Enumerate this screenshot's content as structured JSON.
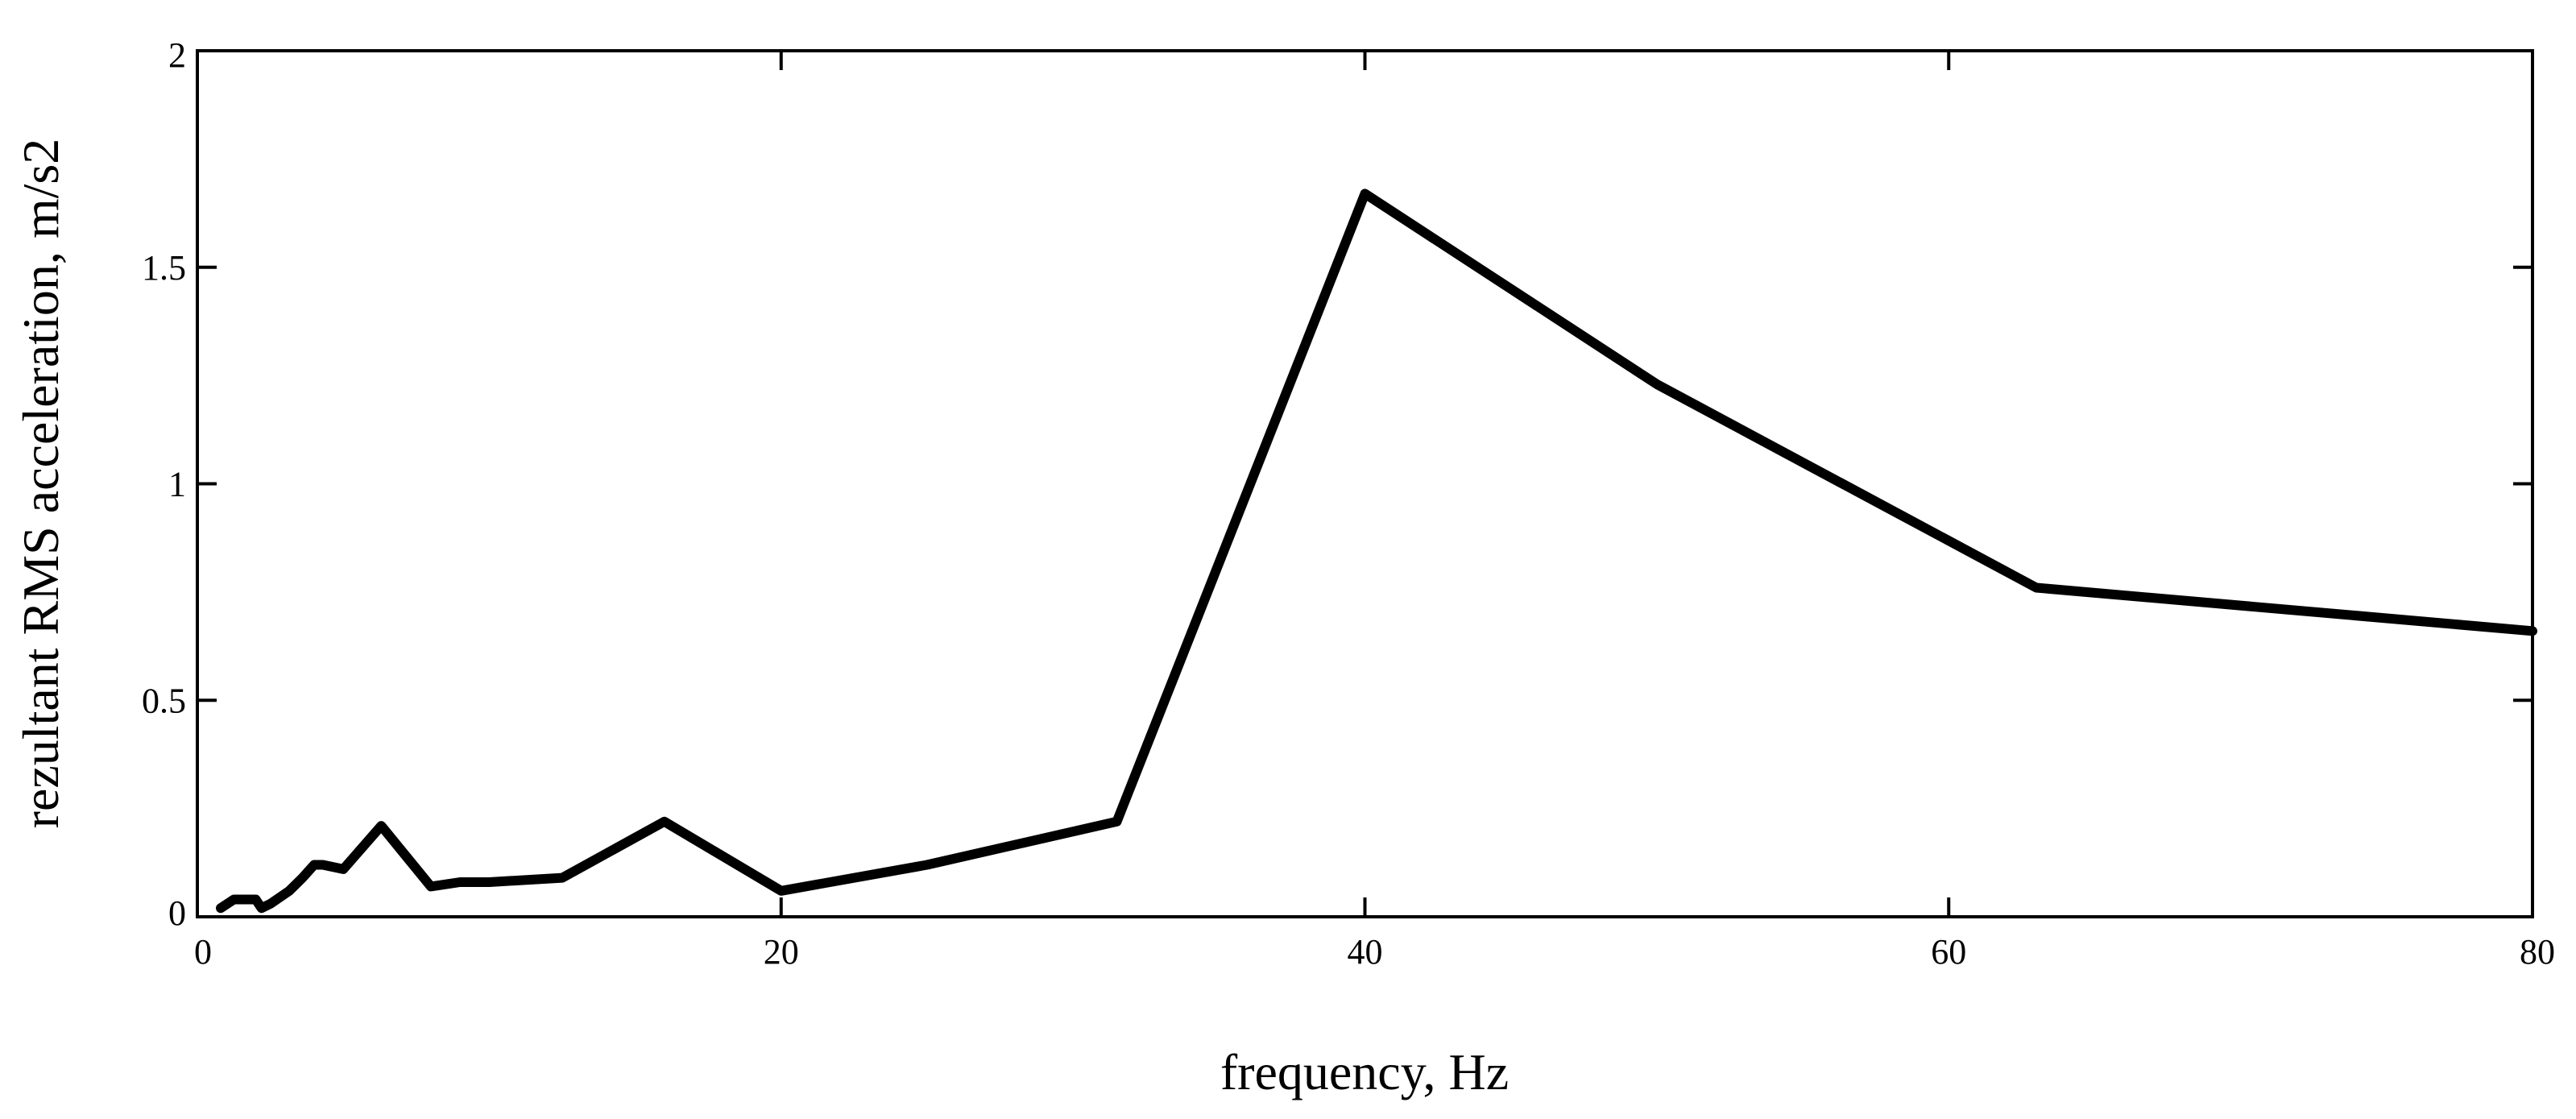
{
  "chart_data": {
    "type": "line",
    "title": "",
    "xlabel": "frequency, Hz",
    "ylabel": "rezultant RMS acceleration, m/s2",
    "xlim": [
      0,
      80
    ],
    "ylim": [
      0,
      2
    ],
    "xticks": [
      0,
      20,
      40,
      60,
      80
    ],
    "yticks": [
      0,
      0.5,
      1,
      1.5,
      2
    ],
    "xtick_labels": [
      "0",
      "20",
      "40",
      "60",
      "80"
    ],
    "ytick_labels": [
      "0",
      "0.5",
      "1",
      "1.5",
      "2"
    ],
    "grid": false,
    "line_color": "#000000",
    "series": [
      {
        "x": [
          0.8,
          1.25,
          2,
          2.2,
          2.5,
          3.15,
          3.6,
          4,
          4.3,
          5,
          6.3,
          8,
          9,
          10,
          12.5,
          16,
          20,
          25,
          31.5,
          40,
          50,
          63,
          80
        ],
        "y": [
          0.02,
          0.04,
          0.04,
          0.02,
          0.03,
          0.06,
          0.09,
          0.12,
          0.12,
          0.11,
          0.21,
          0.07,
          0.08,
          0.08,
          0.09,
          0.22,
          0.06,
          0.12,
          0.22,
          1.67,
          1.23,
          0.76,
          0.66
        ]
      }
    ]
  }
}
